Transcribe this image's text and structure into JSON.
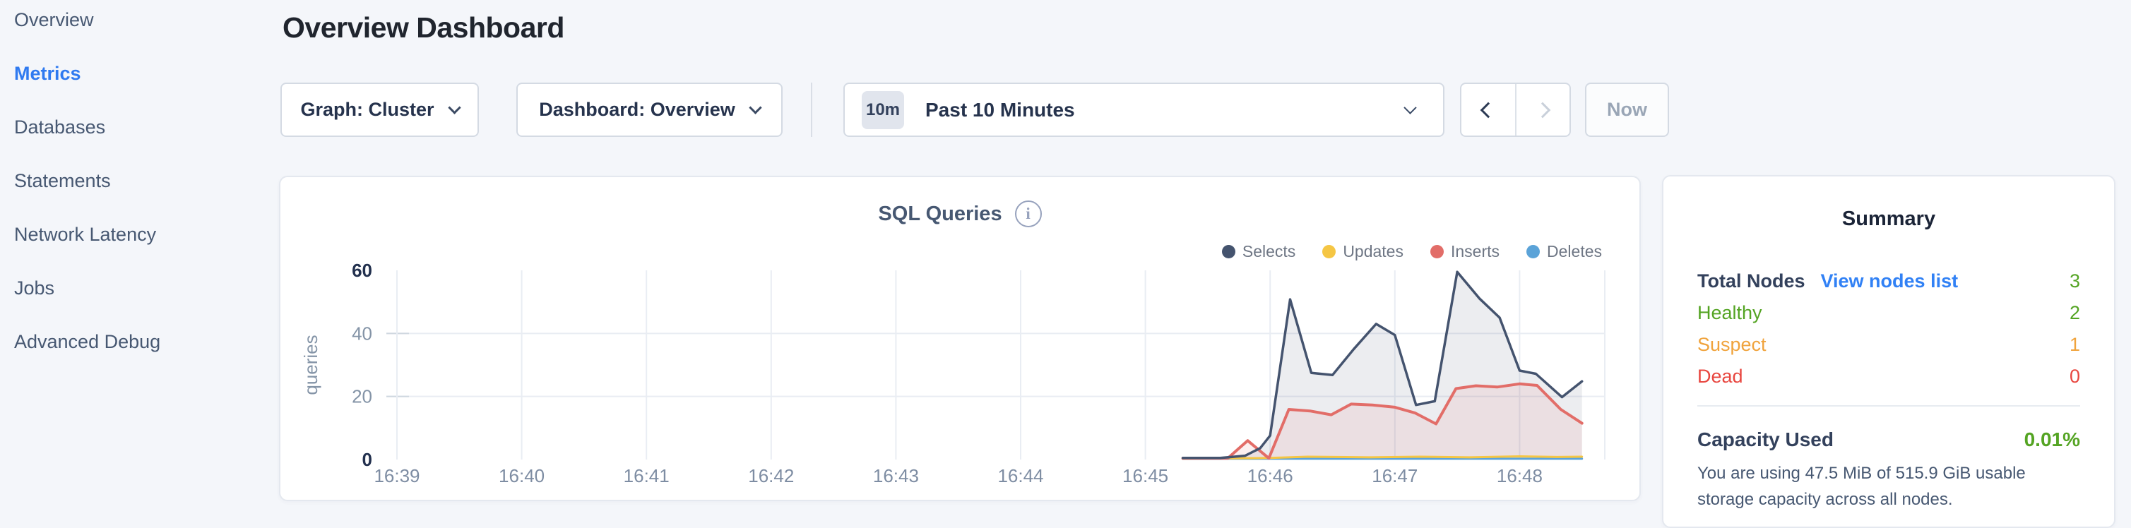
{
  "header": {
    "title": "Overview Dashboard"
  },
  "sidebar": {
    "items": [
      {
        "label": "Overview",
        "active": false
      },
      {
        "label": "Metrics",
        "active": true
      },
      {
        "label": "Databases",
        "active": false
      },
      {
        "label": "Statements",
        "active": false
      },
      {
        "label": "Network Latency",
        "active": false
      },
      {
        "label": "Jobs",
        "active": false
      },
      {
        "label": "Advanced Debug",
        "active": false
      }
    ],
    "active_color": "#2f7af0"
  },
  "toolbar": {
    "graph_dropdown": {
      "label": "Graph: Cluster"
    },
    "dashboard_dropdown": {
      "label": "Dashboard: Overview"
    },
    "time_window": {
      "badge": "10m",
      "label": "Past 10 Minutes"
    },
    "prev_enabled": true,
    "next_enabled": false,
    "now_label": "Now"
  },
  "chart_data": {
    "type": "area",
    "title": "SQL Queries",
    "ylabel": "queries",
    "ylim": [
      0,
      60
    ],
    "yticks": [
      0,
      20,
      40,
      60
    ],
    "x_ticks": [
      "16:39",
      "16:40",
      "16:41",
      "16:42",
      "16:43",
      "16:44",
      "16:45",
      "16:46",
      "16:47",
      "16:48"
    ],
    "x_unit": "time (HH:MM), minutes encoded as 39-48.5",
    "grid": true,
    "legend_position": "top-right",
    "series": [
      {
        "name": "Selects",
        "color": "#44536e",
        "fill": "rgba(68,83,110,0.10)",
        "width": 3.5,
        "points": [
          [
            45.3,
            0.5
          ],
          [
            45.6,
            0.5
          ],
          [
            45.8,
            1.2
          ],
          [
            45.92,
            3.6
          ],
          [
            46.0,
            7.6
          ],
          [
            46.16,
            50.8
          ],
          [
            46.33,
            27.5
          ],
          [
            46.5,
            26.8
          ],
          [
            46.67,
            35.0
          ],
          [
            46.85,
            43.0
          ],
          [
            47.0,
            39.5
          ],
          [
            47.17,
            17.3
          ],
          [
            47.32,
            18.5
          ],
          [
            47.5,
            59.5
          ],
          [
            47.68,
            51.0
          ],
          [
            47.84,
            45.0
          ],
          [
            48.0,
            28.2
          ],
          [
            48.13,
            27.2
          ],
          [
            48.34,
            19.8
          ],
          [
            48.5,
            24.8
          ]
        ]
      },
      {
        "name": "Updates",
        "color": "#f5c644",
        "fill": null,
        "width": 3,
        "points": [
          [
            45.3,
            0.3
          ],
          [
            46.0,
            0.5
          ],
          [
            46.3,
            0.9
          ],
          [
            46.8,
            0.7
          ],
          [
            47.2,
            0.9
          ],
          [
            47.6,
            0.7
          ],
          [
            48.0,
            1.0
          ],
          [
            48.3,
            0.8
          ],
          [
            48.5,
            0.9
          ]
        ]
      },
      {
        "name": "Inserts",
        "color": "#e26d68",
        "fill": "rgba(226,109,104,0.10)",
        "width": 4,
        "points": [
          [
            45.3,
            0.4
          ],
          [
            45.66,
            0.4
          ],
          [
            45.82,
            6.0
          ],
          [
            45.99,
            0.4
          ],
          [
            46.15,
            15.9
          ],
          [
            46.32,
            15.4
          ],
          [
            46.49,
            14.2
          ],
          [
            46.65,
            17.6
          ],
          [
            46.82,
            17.3
          ],
          [
            47.0,
            16.6
          ],
          [
            47.16,
            14.8
          ],
          [
            47.33,
            11.3
          ],
          [
            47.49,
            22.5
          ],
          [
            47.65,
            23.4
          ],
          [
            47.82,
            23.0
          ],
          [
            48.0,
            24.0
          ],
          [
            48.14,
            23.5
          ],
          [
            48.33,
            15.9
          ],
          [
            48.5,
            11.5
          ]
        ]
      },
      {
        "name": "Deletes",
        "color": "#5ba3d8",
        "fill": null,
        "width": 3,
        "points": [
          [
            45.3,
            0.25
          ],
          [
            48.5,
            0.25
          ]
        ]
      }
    ]
  },
  "summary": {
    "title": "Summary",
    "node_rows": [
      {
        "label": "Total Nodes",
        "bold": true,
        "label_color": "#33415c",
        "link": "View nodes list",
        "value": "3",
        "value_color": "#54a423"
      },
      {
        "label": "Healthy",
        "bold": false,
        "label_color": "#54a423",
        "link": null,
        "value": "2",
        "value_color": "#54a423"
      },
      {
        "label": "Suspect",
        "bold": false,
        "label_color": "#f0a33c",
        "link": null,
        "value": "1",
        "value_color": "#f0a33c"
      },
      {
        "label": "Dead",
        "bold": false,
        "label_color": "#e8463f",
        "link": null,
        "value": "0",
        "value_color": "#e8463f"
      }
    ],
    "capacity": {
      "label": "Capacity Used",
      "value": "0.01%",
      "value_color": "#54a423"
    },
    "description": "You are using 47.5 MiB of 515.9 GiB usable storage capacity across all nodes."
  }
}
